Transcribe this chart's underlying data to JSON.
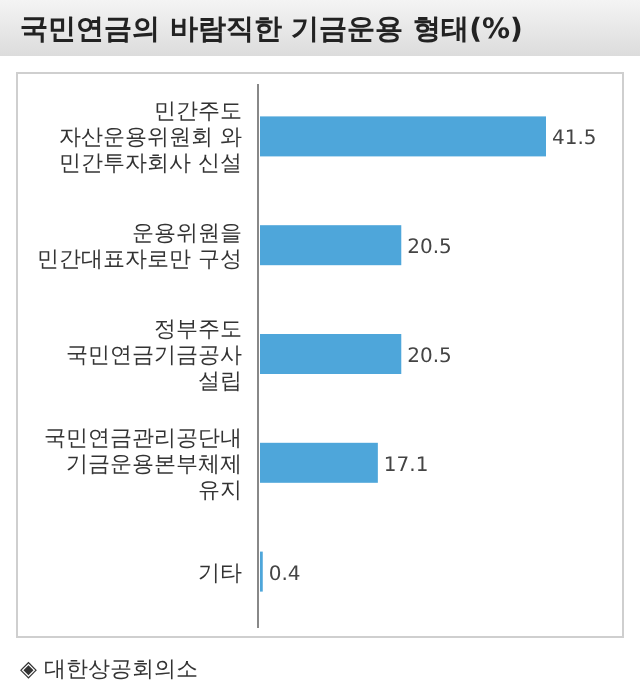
{
  "chart_data": {
    "type": "bar",
    "orientation": "horizontal",
    "title": "국민연금의 바람직한 기금운용 형태(%)",
    "categories": [
      "민간주도\n자산운용위원회 와\n민간투자회사 신설",
      "운용위원을\n민간대표자로만 구성",
      "정부주도\n국민연금기금공사\n설립",
      "국민연금관리공단내\n기금운용본부체제\n유지",
      "기타"
    ],
    "values": [
      41.5,
      20.5,
      20.5,
      17.1,
      0.4
    ],
    "color": "#4ea6da",
    "data_labels": true,
    "annotations": [
      "◈ 대한상공회의소"
    ]
  }
}
